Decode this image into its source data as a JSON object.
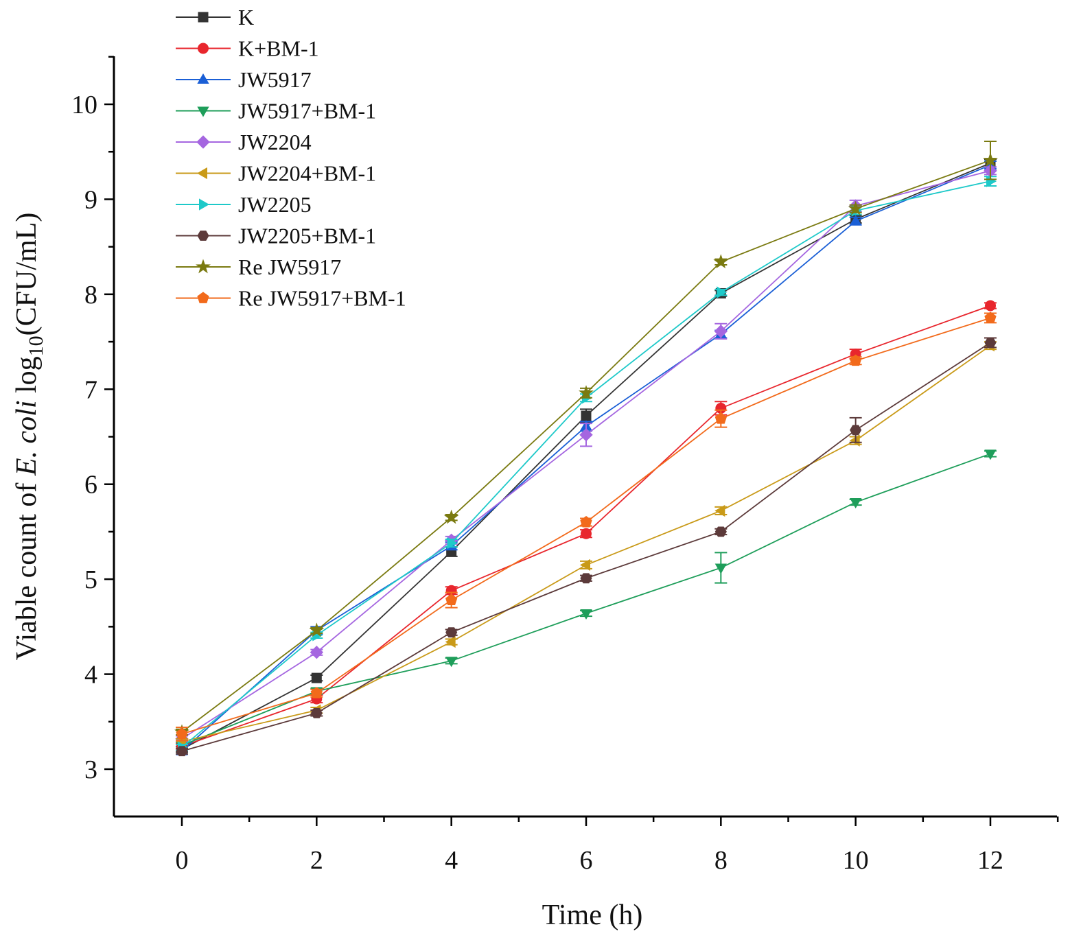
{
  "chart_data": {
    "type": "line",
    "title": "",
    "xlabel": "Time (h)",
    "ylabel": {
      "prefix": "Viable count of ",
      "italic": "E. coli",
      "middle": " log",
      "subscript": "10",
      "suffix": "(CFU/mL)"
    },
    "xlim": [
      -1,
      13.5
    ],
    "ylim": [
      2.5,
      10.5
    ],
    "x_ticks": [
      0,
      2,
      4,
      6,
      8,
      10,
      12
    ],
    "x_tick_labels": [
      "0",
      "2",
      "4",
      "6",
      "8",
      "10",
      "12"
    ],
    "y_ticks": [
      3,
      4,
      5,
      6,
      7,
      8,
      9,
      10
    ],
    "y_tick_labels": [
      "3",
      "4",
      "5",
      "6",
      "7",
      "8",
      "9",
      "10"
    ],
    "grid": false,
    "legend_position": "top-left",
    "x": [
      0,
      2,
      4,
      6,
      8,
      10,
      12
    ],
    "series": [
      {
        "name": "K",
        "color": "#333333",
        "marker": "square",
        "values": [
          3.21,
          3.96,
          5.29,
          6.72,
          8.01,
          8.79,
          9.38
        ],
        "errors": [
          0.03,
          0.03,
          0.05,
          0.07,
          0.03,
          0.04,
          0.04
        ]
      },
      {
        "name": "K+BM-1",
        "color": "#e8262d",
        "marker": "circle",
        "values": [
          3.24,
          3.74,
          4.88,
          5.48,
          6.8,
          7.37,
          7.88
        ],
        "errors": [
          0.03,
          0.04,
          0.04,
          0.04,
          0.07,
          0.05,
          0.03
        ]
      },
      {
        "name": "JW5917",
        "color": "#1a5fd6",
        "marker": "triangle-up",
        "values": [
          3.19,
          4.46,
          5.35,
          6.61,
          7.58,
          8.77,
          9.36
        ],
        "errors": [
          0.03,
          0.04,
          0.04,
          0.05,
          0.04,
          0.04,
          0.04
        ]
      },
      {
        "name": "JW5917+BM-1",
        "color": "#1e9e5a",
        "marker": "triangle-down",
        "values": [
          3.25,
          3.82,
          4.14,
          4.64,
          5.12,
          5.81,
          6.32
        ],
        "errors": [
          0.03,
          0.03,
          0.03,
          0.03,
          0.16,
          0.03,
          0.03
        ]
      },
      {
        "name": "JW2204",
        "color": "#a566e0",
        "marker": "diamond",
        "values": [
          3.32,
          4.23,
          5.41,
          6.52,
          7.61,
          8.93,
          9.3
        ],
        "errors": [
          0.03,
          0.03,
          0.04,
          0.12,
          0.08,
          0.06,
          0.04
        ]
      },
      {
        "name": "JW2204+BM-1",
        "color": "#c99a18",
        "marker": "triangle-left",
        "values": [
          3.29,
          3.62,
          4.34,
          5.15,
          5.72,
          6.46,
          7.46
        ],
        "errors": [
          0.03,
          0.03,
          0.03,
          0.04,
          0.04,
          0.04,
          0.04
        ]
      },
      {
        "name": "JW2205",
        "color": "#1ec9c9",
        "marker": "triangle-right",
        "values": [
          3.23,
          4.41,
          5.38,
          6.91,
          8.02,
          8.88,
          9.19
        ],
        "errors": [
          0.03,
          0.03,
          0.04,
          0.04,
          0.03,
          0.04,
          0.05
        ]
      },
      {
        "name": "JW2205+BM-1",
        "color": "#5c3a3a",
        "marker": "hexagon",
        "values": [
          3.19,
          3.59,
          4.44,
          5.01,
          5.5,
          6.57,
          7.49
        ],
        "errors": [
          0.03,
          0.03,
          0.03,
          0.03,
          0.03,
          0.13,
          0.05
        ]
      },
      {
        "name": "Re JW5917",
        "color": "#7a7a10",
        "marker": "star",
        "values": [
          3.39,
          4.46,
          5.65,
          6.96,
          8.34,
          8.9,
          9.41
        ],
        "errors": [
          0.03,
          0.03,
          0.03,
          0.05,
          0.03,
          0.04,
          0.2
        ]
      },
      {
        "name": "Re JW5917+BM-1",
        "color": "#f26a1b",
        "marker": "pentagon",
        "values": [
          3.37,
          3.8,
          4.78,
          5.6,
          6.69,
          7.3,
          7.75
        ],
        "errors": [
          0.07,
          0.04,
          0.08,
          0.04,
          0.09,
          0.04,
          0.05
        ]
      }
    ]
  }
}
